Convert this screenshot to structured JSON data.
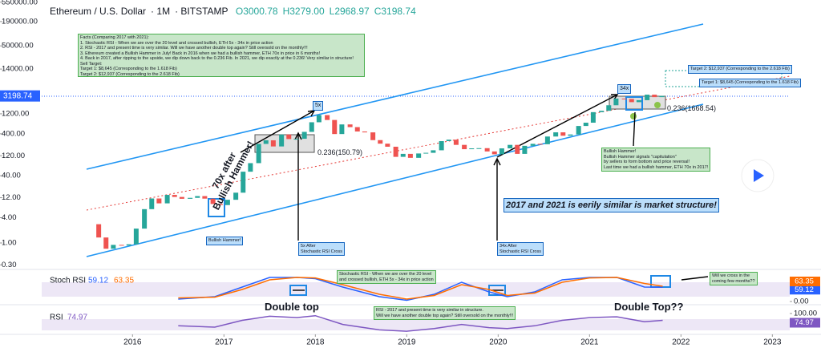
{
  "chart_data": {
    "type": "candlestick",
    "header": {
      "symbol": "Ethereum / U.S. Dollar",
      "interval": "1M",
      "exchange": "BITSTAMP",
      "ohlc": [
        "O3000.78",
        "H3279.00",
        "L2968.97",
        "C3198.74"
      ]
    },
    "log": true,
    "up_color": "#26a69a",
    "down_color": "#ef5350",
    "xlim": [
      2014.55,
      2023.19
    ],
    "xticks": [
      2016,
      2017,
      2018,
      2019,
      2020,
      2021,
      2022,
      2023
    ],
    "ylim": [
      0.234,
      620000
    ],
    "yticks": [
      {
        "value": 550000,
        "label": "550000.00"
      },
      {
        "value": 190000,
        "label": "190000.00"
      },
      {
        "value": 50000,
        "label": "50000.00"
      },
      {
        "value": 14000,
        "label": "14000.00"
      },
      {
        "value": 1200,
        "label": "1200.00"
      },
      {
        "value": 400,
        "label": "400.00"
      },
      {
        "value": 120,
        "label": "120.00"
      },
      {
        "value": 40,
        "label": "40.00"
      },
      {
        "value": 12,
        "label": "12.00"
      },
      {
        "value": 4,
        "label": "4.00"
      },
      {
        "value": 1,
        "label": "1.00"
      },
      {
        "value": 0.3,
        "label": "0.30"
      }
    ],
    "x": [
      2015.63,
      2015.71,
      2015.79,
      2015.88,
      2015.96,
      2016.04,
      2016.13,
      2016.21,
      2016.29,
      2016.38,
      2016.46,
      2016.54,
      2016.63,
      2016.71,
      2016.79,
      2016.88,
      2016.96,
      2017.04,
      2017.13,
      2017.21,
      2017.29,
      2017.38,
      2017.46,
      2017.54,
      2017.63,
      2017.71,
      2017.79,
      2017.88,
      2017.96,
      2018.04,
      2018.13,
      2018.21,
      2018.29,
      2018.38,
      2018.46,
      2018.54,
      2018.63,
      2018.71,
      2018.79,
      2018.88,
      2018.96,
      2019.04,
      2019.13,
      2019.21,
      2019.29,
      2019.38,
      2019.46,
      2019.54,
      2019.63,
      2019.71,
      2019.79,
      2019.88,
      2019.96,
      2020.04,
      2020.13,
      2020.21,
      2020.29,
      2020.38,
      2020.46,
      2020.54,
      2020.63,
      2020.71,
      2020.79,
      2020.88,
      2020.96,
      2021.04,
      2021.13,
      2021.21,
      2021.29,
      2021.38,
      2021.46,
      2021.54,
      2021.63,
      2021.71,
      2021.79
    ],
    "open": [
      2.8,
      1.35,
      0.73,
      0.9,
      0.87,
      0.93,
      2.2,
      6.4,
      11.5,
      8.8,
      14,
      12.5,
      11.3,
      11.9,
      13.1,
      11.4,
      8.5,
      8,
      10.7,
      15.8,
      50,
      80,
      230,
      280,
      200,
      385,
      300,
      305,
      445,
      755,
      1118,
      855,
      395,
      670,
      578,
      455,
      433,
      283,
      233,
      197,
      113,
      133,
      107,
      136,
      141,
      162,
      268,
      290,
      218,
      172,
      180,
      182,
      152,
      130,
      180,
      218,
      133,
      207,
      231,
      226,
      345,
      434,
      360,
      386,
      615,
      737,
      1314,
      1416,
      1919,
      2773,
      2707,
      2275,
      2536,
      3434,
      3000.78
    ],
    "close": [
      1.35,
      0.73,
      0.9,
      0.87,
      0.93,
      2.2,
      6.4,
      11.5,
      8.8,
      14,
      12.5,
      11.3,
      11.9,
      13.1,
      11.4,
      8.5,
      8,
      10.7,
      15.8,
      50,
      80,
      230,
      280,
      200,
      385,
      300,
      305,
      445,
      755,
      1118,
      855,
      395,
      670,
      578,
      455,
      433,
      283,
      233,
      197,
      113,
      133,
      107,
      136,
      141,
      162,
      268,
      290,
      218,
      172,
      180,
      182,
      152,
      130,
      180,
      218,
      133,
      207,
      231,
      226,
      345,
      434,
      360,
      386,
      615,
      737,
      1314,
      1416,
      1919,
      2773,
      2707,
      2275,
      2536,
      3434,
      3000.78,
      3198.74
    ],
    "stoch": {
      "title": "Stoch RSI",
      "ylim": [
        0,
        100
      ],
      "yticks": [
        {
          "value": 0,
          "label": "0.00"
        }
      ],
      "x": [
        2016.5,
        2016.9,
        2017.2,
        2017.5,
        2017.8,
        2018.0,
        2018.3,
        2018.7,
        2019.0,
        2019.3,
        2019.6,
        2019.9,
        2020.1,
        2020.4,
        2020.7,
        2021.0,
        2021.3,
        2021.6,
        2021.8
      ],
      "series": [
        {
          "color": "#2962ff",
          "values": [
            10,
            20,
            60,
            100,
            100,
            95,
            60,
            20,
            5,
            30,
            80,
            40,
            20,
            40,
            90,
            100,
            100,
            60,
            59.12
          ]
        },
        {
          "color": "#ff6d00",
          "values": [
            15,
            18,
            50,
            90,
            100,
            98,
            70,
            30,
            10,
            25,
            70,
            50,
            25,
            35,
            80,
            98,
            100,
            75,
            63.35
          ]
        }
      ]
    },
    "rsi": {
      "title": "RSI",
      "ylim": [
        0,
        100
      ],
      "yticks": [
        {
          "value": 100,
          "label": "100.00"
        }
      ],
      "x": [
        2016.5,
        2016.9,
        2017.2,
        2017.5,
        2017.8,
        2018.0,
        2018.3,
        2018.7,
        2019.0,
        2019.3,
        2019.6,
        2019.9,
        2020.1,
        2020.4,
        2020.7,
        2021.0,
        2021.3,
        2021.6,
        2021.8
      ],
      "series": [
        {
          "color": "#7e57c2",
          "values": [
            55,
            50,
            75,
            90,
            85,
            92,
            60,
            40,
            35,
            45,
            60,
            48,
            45,
            55,
            75,
            85,
            88,
            70,
            74.97
          ]
        }
      ]
    },
    "notes": {
      "facts": [
        "Facts (Comparing 2017 with 2021):",
        "1. Stochastic RSI - When we are over the 20 level and crossed bullish, ETH 5x - 34x in price action",
        "2. RSI - 2017 and present time is very similar. Will we have another double top again? Still oversold on the monthly!!!",
        "3. Ethereum created a Bullish Hammer in July! Back in 2016 when we had a bullish hammer, ETH 70x in price in 6 months!",
        "4. Back in 2017, after ripping to the upside, we dip down back to the 0.236 Fib. In 2021, we dip exactly at the 0.236! Very similar in structure!",
        "Sell Target:",
        "Target 1: $8,645 (Corresponding to the 1.618 Fib)",
        "Target 2: $12,937 (Corresponding to the 2.618 Fib)"
      ],
      "seventy": [
        "70x after",
        "Bullish Hammer!"
      ],
      "hammer_2016": "Bullish Hammer!",
      "fib_2017": "0.236(150.79)",
      "five_x": "5x",
      "thirtyfour_x": "34x",
      "cross_2017": [
        "5x After",
        "Stochastic RSI Cross"
      ],
      "cross_2020": [
        "34x After",
        "Stochastic RSI Cross"
      ],
      "fib_2021": "0.236(1668.54)",
      "target_2": "Target 2: $12,937 (Corresponding to the 2.618 Fib)",
      "target_1": "Target 1: $8,645 (Corresponding to the 1.618 Fib)",
      "hammer_2021": [
        "Bullish Hammer!",
        "Bullish Hammer signals \"capitulation\"",
        "by sellers to form bottom and price reversal!",
        "Last time we had a bullish hammer, ETH 70x in 2017!"
      ],
      "similar": "2017 and 2021 is eerily similar is market structure!",
      "stoch_note": [
        "Stochastic RSI - When we are over the 20 level",
        "and crossed bullish, ETH 5x - 34x in price action"
      ],
      "cross_q": [
        "Will we cross in the",
        "coming few months??"
      ],
      "rsi_note": [
        "RSI - 2017 and present time is very similar in structure.",
        "Will we have another double top again? Still oversold on the monthly!!!"
      ],
      "double_top": "Double top",
      "double_top_q": "Double Top??"
    }
  }
}
